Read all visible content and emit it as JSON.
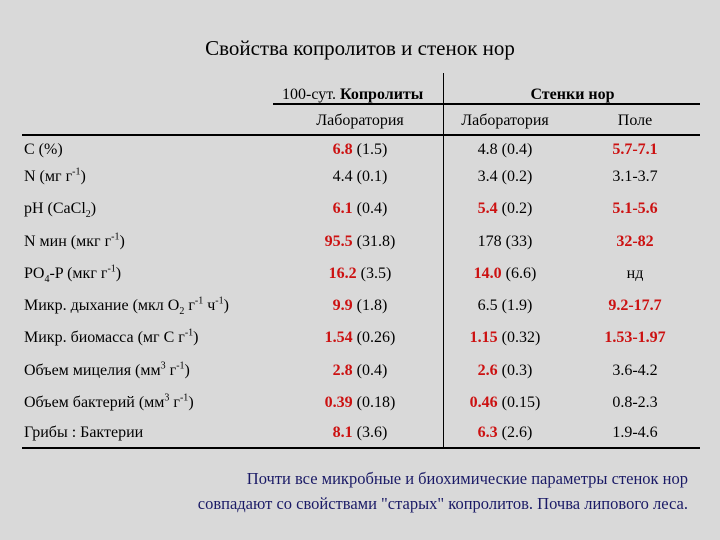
{
  "title": "Свойства копролитов и стенок нор",
  "header": {
    "group1_prefix": "100-сут.",
    "group1_bold": "Копролиты",
    "group2": "Стенки нор",
    "sub1": "Лаборатория",
    "sub2": "Лаборатория",
    "sub3": "Поле"
  },
  "rows": [
    {
      "label_parts": [
        "C (%)"
      ],
      "c1_main": "6.8",
      "c1_sd": " (1.5)",
      "c1_red": true,
      "c2_main": "4.8",
      "c2_sd": " (0.4)",
      "c2_red": false,
      "c3": "5.7-7.1",
      "c3_red": true
    },
    {
      "label_parts": [
        "N (мг г",
        "-1",
        ")"
      ],
      "c1_main": "4.4",
      "c1_sd": " (0.1)",
      "c1_red": false,
      "c2_main": "3.4",
      "c2_sd": " (0.2)",
      "c2_red": false,
      "c3": "3.1-3.7",
      "c3_red": false
    },
    {
      "label_parts": [
        "pH (CaCl",
        "2",
        ")"
      ],
      "c1_main": "6.1",
      "c1_sd": " (0.4)",
      "c1_red": true,
      "c2_main": "5.4",
      "c2_sd": " (0.2)",
      "c2_red": true,
      "c3": "5.1-5.6",
      "c3_red": true
    },
    {
      "label_parts": [
        "N мин (мкг г",
        "-1",
        ")"
      ],
      "c1_main": "95.5",
      "c1_sd": " (31.8)",
      "c1_red": true,
      "c2_main": "178",
      "c2_sd": " (33)",
      "c2_red": false,
      "c3": "32-82",
      "c3_red": true
    },
    {
      "label_parts": [
        "PO",
        "4",
        "-P (мкг г",
        "-1",
        ")"
      ],
      "c1_main": "16.2",
      "c1_sd": " (3.5)",
      "c1_red": true,
      "c2_main": "14.0",
      "c2_sd": " (6.6)",
      "c2_red": true,
      "c3": "нд",
      "c3_red": false
    },
    {
      "label_parts": [
        "Микр. дыхание (мкл O",
        "2",
        " г",
        "-1",
        " ч",
        "-1",
        ")"
      ],
      "c1_main": "9.9",
      "c1_sd": " (1.8)",
      "c1_red": true,
      "c2_main": "6.5",
      "c2_sd": " (1.9)",
      "c2_red": false,
      "c3": "9.2-17.7",
      "c3_red": true
    },
    {
      "label_parts": [
        "Микр. биомасса (мг C г",
        "-1",
        ")"
      ],
      "c1_main": "1.54",
      "c1_sd": " (0.26)",
      "c1_red": true,
      "c2_main": "1.15",
      "c2_sd": " (0.32)",
      "c2_red": true,
      "c3": "1.53-1.97",
      "c3_red": true
    },
    {
      "label_parts": [
        "Объем мицелия (мм",
        "3",
        " г",
        "-1",
        ")"
      ],
      "c1_main": "2.8",
      "c1_sd": " (0.4)",
      "c1_red": true,
      "c2_main": "2.6",
      "c2_sd": " (0.3)",
      "c2_red": true,
      "c3": "3.6-4.2",
      "c3_red": false
    },
    {
      "label_parts": [
        "Объем бактерий (мм",
        "3",
        " г",
        "-1",
        ")"
      ],
      "c1_main": "0.39",
      "c1_sd": " (0.18)",
      "c1_red": true,
      "c2_main": "0.46",
      "c2_sd": " (0.15)",
      "c2_red": true,
      "c3": "0.8-2.3",
      "c3_red": false
    },
    {
      "label_parts": [
        "Грибы : Бактерии"
      ],
      "c1_main": "8.1",
      "c1_sd": " (3.6)",
      "c1_red": true,
      "c2_main": "6.3",
      "c2_sd": " (2.6)",
      "c2_red": true,
      "c3": "1.9-4.6",
      "c3_red": false
    }
  ],
  "note": {
    "line1": "Почти все микробные и биохимические параметры стенок нор",
    "line2": "совпадают со свойствами \"старых\" копролитов. Почва липового леса."
  },
  "colors": {
    "background": "#d9d9d9",
    "highlight": "#cc1111",
    "note": "#1a1a66"
  }
}
